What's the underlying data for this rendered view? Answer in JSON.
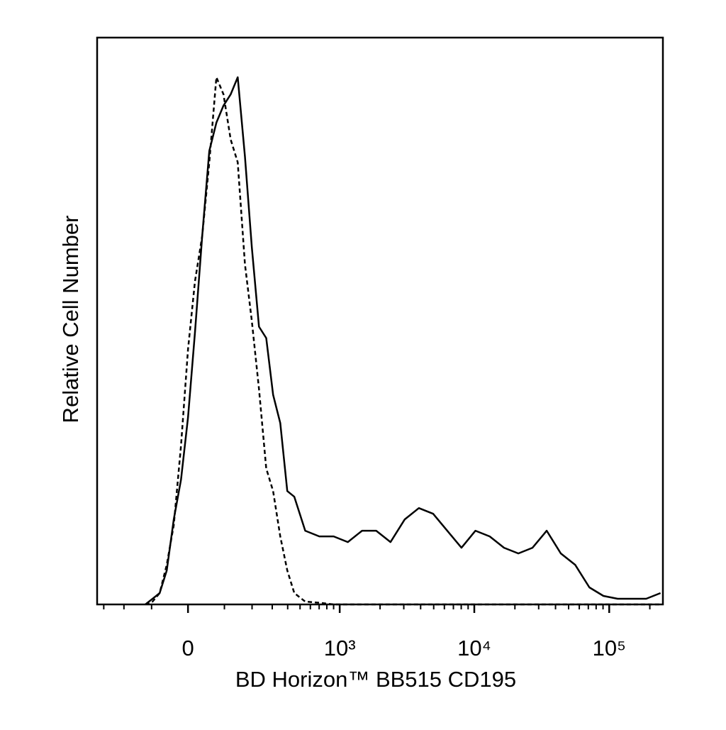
{
  "chart_data": {
    "type": "line",
    "x_label": "BD Horizon™ BB515 CD195",
    "y_label": "Relative Cell Number",
    "xscale": "asinh",
    "xlim": [
      -340,
      250000
    ],
    "ylim": [
      0,
      100
    ],
    "xticks": [
      0,
      {
        "value": 1000,
        "label": "10³"
      },
      {
        "value": 10000,
        "label": "10⁴"
      },
      {
        "value": 100000,
        "label": "10⁵"
      }
    ],
    "xminorticks": [
      -300,
      -200,
      -100,
      100,
      200,
      300,
      400,
      500,
      600,
      700,
      800,
      900,
      2000,
      3000,
      4000,
      5000,
      6000,
      7000,
      8000,
      9000,
      20000,
      30000,
      40000,
      50000,
      60000,
      70000,
      80000,
      90000,
      200000
    ],
    "x": [
      -120,
      -97,
      -76,
      -56,
      -37,
      -18,
      0,
      18,
      37,
      56,
      76,
      97,
      120,
      144,
      171,
      199,
      231,
      267,
      305,
      349,
      397,
      451,
      548,
      702,
      900,
      1150,
      1470,
      1870,
      2390,
      3050,
      3880,
      4950,
      6300,
      8030,
      10200,
      13000,
      16600,
      21200,
      27000,
      34400,
      43800,
      55900,
      71300,
      90600,
      115500,
      148000,
      188000,
      240000
    ],
    "series": [
      {
        "color": "#000000",
        "line_style": "solid",
        "values": [
          0,
          1,
          2,
          6,
          15,
          22,
          33,
          48,
          65,
          80,
          85,
          88,
          90,
          93,
          79,
          63,
          49,
          47,
          37,
          32,
          20,
          19,
          13,
          12,
          12,
          11,
          13,
          13,
          11,
          15,
          17,
          16,
          13,
          10,
          13,
          12,
          10,
          9,
          10,
          13,
          9,
          7,
          3,
          1.5,
          1,
          1,
          1,
          2
        ]
      },
      {
        "color": "#000000",
        "line_style": "dashed",
        "values": [
          0,
          0.5,
          2,
          7,
          14,
          28,
          45,
          57,
          65,
          78,
          93,
          90,
          82,
          78,
          60,
          50,
          38,
          24,
          20,
          12,
          6,
          2,
          0.5,
          0.3,
          0,
          0,
          0,
          0,
          0,
          0,
          0,
          0,
          0,
          0,
          0,
          0,
          0,
          0,
          0,
          0,
          0,
          0,
          0,
          0,
          0,
          0,
          0,
          0
        ]
      }
    ]
  }
}
